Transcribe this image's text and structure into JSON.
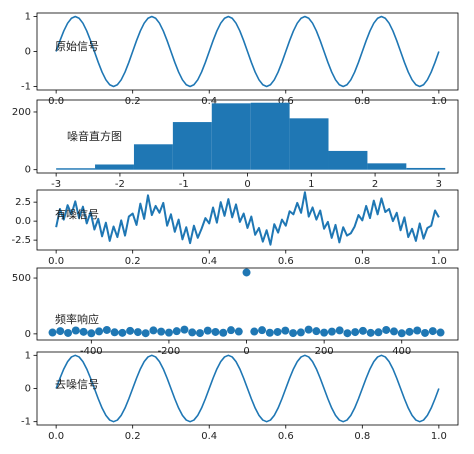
{
  "chart_data": [
    {
      "type": "line",
      "label": "原始信号",
      "color": "#1f77b4",
      "x": [
        0,
        0.01,
        0.02,
        0.03,
        0.04,
        0.05,
        0.06,
        0.07,
        0.08,
        0.09,
        0.1,
        0.11,
        0.12,
        0.13,
        0.14,
        0.15,
        0.16,
        0.17,
        0.18,
        0.19,
        0.2,
        0.21,
        0.22,
        0.23,
        0.24,
        0.25,
        0.26,
        0.27,
        0.28,
        0.29,
        0.3,
        0.31,
        0.32,
        0.33,
        0.34,
        0.35,
        0.36,
        0.37,
        0.38,
        0.39,
        0.4,
        0.41,
        0.42,
        0.43,
        0.44,
        0.45,
        0.46,
        0.47,
        0.48,
        0.49,
        0.5,
        0.51,
        0.52,
        0.53,
        0.54,
        0.55,
        0.56,
        0.57,
        0.58,
        0.59,
        0.6,
        0.61,
        0.62,
        0.63,
        0.64,
        0.65,
        0.66,
        0.67,
        0.68,
        0.69,
        0.7,
        0.71,
        0.72,
        0.73,
        0.74,
        0.75,
        0.76,
        0.77,
        0.78,
        0.79,
        0.8,
        0.81,
        0.82,
        0.83,
        0.84,
        0.85,
        0.86,
        0.87,
        0.88,
        0.89,
        0.9,
        0.91,
        0.92,
        0.93,
        0.94,
        0.95,
        0.96,
        0.97,
        0.98,
        0.99,
        1
      ],
      "values": [
        0,
        0.309,
        0.588,
        0.809,
        0.951,
        1,
        0.951,
        0.809,
        0.588,
        0.309,
        0,
        -0.309,
        -0.588,
        -0.809,
        -0.951,
        -1,
        -0.951,
        -0.809,
        -0.588,
        -0.309,
        0,
        0.309,
        0.588,
        0.809,
        0.951,
        1,
        0.951,
        0.809,
        0.588,
        0.309,
        0,
        -0.309,
        -0.588,
        -0.809,
        -0.951,
        -1,
        -0.951,
        -0.809,
        -0.588,
        -0.309,
        0,
        0.309,
        0.588,
        0.809,
        0.951,
        1,
        0.951,
        0.809,
        0.588,
        0.309,
        0,
        -0.309,
        -0.588,
        -0.809,
        -0.951,
        -1,
        -0.951,
        -0.809,
        -0.588,
        -0.309,
        0,
        0.309,
        0.588,
        0.809,
        0.951,
        1,
        0.951,
        0.809,
        0.588,
        0.309,
        0,
        -0.309,
        -0.588,
        -0.809,
        -0.951,
        -1,
        -0.951,
        -0.809,
        -0.588,
        -0.309,
        0,
        0.309,
        0.588,
        0.809,
        0.951,
        1,
        0.951,
        0.809,
        0.588,
        0.309,
        0,
        -0.309,
        -0.588,
        -0.809,
        -0.951,
        -1,
        -0.951,
        -0.809,
        -0.588,
        -0.309,
        0
      ],
      "xlim": [
        -0.05,
        1.05
      ],
      "ylim": [
        -1.1,
        1.1
      ],
      "xticks": [
        {
          "value": 0,
          "label": "0.0"
        },
        0.2,
        0.4,
        0.6,
        0.8,
        {
          "value": 1,
          "label": "1.0"
        }
      ],
      "yticks": [
        -1,
        0,
        1
      ]
    },
    {
      "type": "histogram",
      "label": "噪音直方图",
      "color": "#1f77b4",
      "bins": [
        -3.0,
        -2.39,
        -1.78,
        -1.17,
        -0.56,
        0.05,
        0.66,
        1.27,
        1.88,
        2.49,
        3.1
      ],
      "values": [
        5,
        18,
        88,
        165,
        230,
        232,
        178,
        65,
        22,
        6
      ],
      "xlim": [
        -3.3,
        3.3
      ],
      "ylim": [
        -11.5,
        241.5
      ],
      "xticks": [
        -3,
        -2,
        -1,
        0,
        1,
        2,
        3
      ],
      "yticks": [
        0,
        200
      ]
    },
    {
      "type": "line",
      "label": "有噪信号",
      "color": "#1f77b4",
      "x": [
        0,
        0.01,
        0.02,
        0.03,
        0.04,
        0.05,
        0.06,
        0.07,
        0.08,
        0.09,
        0.1,
        0.11,
        0.12,
        0.13,
        0.14,
        0.15,
        0.16,
        0.17,
        0.18,
        0.19,
        0.2,
        0.21,
        0.22,
        0.23,
        0.24,
        0.25,
        0.26,
        0.27,
        0.28,
        0.29,
        0.3,
        0.31,
        0.32,
        0.33,
        0.34,
        0.35,
        0.36,
        0.37,
        0.38,
        0.39,
        0.4,
        0.41,
        0.42,
        0.43,
        0.44,
        0.45,
        0.46,
        0.47,
        0.48,
        0.49,
        0.5,
        0.51,
        0.52,
        0.53,
        0.54,
        0.55,
        0.56,
        0.57,
        0.58,
        0.59,
        0.6,
        0.61,
        0.62,
        0.63,
        0.64,
        0.65,
        0.66,
        0.67,
        0.68,
        0.69,
        0.7,
        0.71,
        0.72,
        0.73,
        0.74,
        0.75,
        0.76,
        0.77,
        0.78,
        0.79,
        0.8,
        0.81,
        0.82,
        0.83,
        0.84,
        0.85,
        0.86,
        0.87,
        0.88,
        0.89,
        0.9,
        0.91,
        0.92,
        0.93,
        0.94,
        0.95,
        0.96,
        0.97,
        0.98,
        0.99,
        1
      ],
      "values": [
        -0.8,
        1.6,
        0.2,
        2.1,
        0.9,
        2.6,
        0.4,
        1.9,
        -0.3,
        1.2,
        -1.1,
        0.3,
        -2.0,
        -0.2,
        -2.6,
        -0.7,
        -2.1,
        0.1,
        -1.9,
        0.6,
        1.0,
        -0.5,
        2.3,
        0.3,
        3.4,
        0.8,
        2.0,
        1.1,
        2.4,
        -0.6,
        0.9,
        -1.4,
        0.2,
        -2.4,
        -0.8,
        -2.9,
        -0.6,
        -2.2,
        -1.0,
        0.4,
        -0.3,
        1.8,
        -0.2,
        2.5,
        0.7,
        2.9,
        0.5,
        2.2,
        -0.1,
        1.0,
        -0.9,
        0.6,
        -1.8,
        -0.9,
        -2.7,
        -1.2,
        -3.1,
        -0.4,
        -1.5,
        0.2,
        -0.6,
        1.3,
        0.9,
        2.4,
        1.1,
        3.8,
        0.6,
        1.8,
        0.2,
        1.4,
        -1.0,
        -0.1,
        -2.2,
        -0.5,
        -2.8,
        -0.8,
        -1.9,
        -1.6,
        -0.7,
        0.8,
        0.1,
        2.0,
        0.4,
        2.7,
        0.9,
        3.0,
        1.2,
        1.6,
        0.0,
        1.1,
        -1.2,
        0.5,
        -2.1,
        -1.0,
        -2.6,
        -0.3,
        -2.3,
        -0.9,
        -0.6,
        1.4,
        0.5
      ],
      "xlim": [
        -0.05,
        1.05
      ],
      "ylim": [
        -3.8,
        4.1
      ],
      "xticks": [
        {
          "value": 0,
          "label": "0.0"
        },
        0.2,
        0.4,
        0.6,
        0.8,
        {
          "value": 1,
          "label": "1.0"
        }
      ],
      "yticks": [
        -2.5,
        {
          "value": 0,
          "label": "0.0"
        },
        2.5
      ]
    },
    {
      "type": "scatter",
      "label": "频率响应",
      "color": "#1f77b4",
      "x": [
        -500,
        -480,
        -460,
        -440,
        -420,
        -400,
        -380,
        -360,
        -340,
        -320,
        -300,
        -280,
        -260,
        -240,
        -220,
        -200,
        -180,
        -160,
        -140,
        -120,
        -100,
        -80,
        -60,
        -40,
        -20,
        0,
        20,
        40,
        60,
        80,
        100,
        120,
        140,
        160,
        180,
        200,
        220,
        240,
        260,
        280,
        300,
        320,
        340,
        360,
        380,
        400,
        420,
        440,
        460,
        480,
        500
      ],
      "values": [
        12,
        25,
        8,
        30,
        18,
        5,
        22,
        35,
        14,
        9,
        27,
        16,
        6,
        31,
        20,
        11,
        24,
        38,
        13,
        7,
        29,
        17,
        10,
        33,
        21,
        550,
        21,
        33,
        10,
        17,
        29,
        7,
        13,
        38,
        24,
        11,
        20,
        31,
        6,
        16,
        27,
        9,
        14,
        35,
        22,
        5,
        18,
        30,
        8,
        25,
        12
      ],
      "xlim": [
        -540,
        545
      ],
      "ylim": [
        -55,
        590
      ],
      "xticks": [
        -400,
        -200,
        0,
        200,
        400
      ],
      "yticks": [
        0,
        500
      ]
    },
    {
      "type": "line",
      "label": "去噪信号",
      "color": "#1f77b4",
      "x": [
        0,
        0.01,
        0.02,
        0.03,
        0.04,
        0.05,
        0.06,
        0.07,
        0.08,
        0.09,
        0.1,
        0.11,
        0.12,
        0.13,
        0.14,
        0.15,
        0.16,
        0.17,
        0.18,
        0.19,
        0.2,
        0.21,
        0.22,
        0.23,
        0.24,
        0.25,
        0.26,
        0.27,
        0.28,
        0.29,
        0.3,
        0.31,
        0.32,
        0.33,
        0.34,
        0.35,
        0.36,
        0.37,
        0.38,
        0.39,
        0.4,
        0.41,
        0.42,
        0.43,
        0.44,
        0.45,
        0.46,
        0.47,
        0.48,
        0.49,
        0.5,
        0.51,
        0.52,
        0.53,
        0.54,
        0.55,
        0.56,
        0.57,
        0.58,
        0.59,
        0.6,
        0.61,
        0.62,
        0.63,
        0.64,
        0.65,
        0.66,
        0.67,
        0.68,
        0.69,
        0.7,
        0.71,
        0.72,
        0.73,
        0.74,
        0.75,
        0.76,
        0.77,
        0.78,
        0.79,
        0.8,
        0.81,
        0.82,
        0.83,
        0.84,
        0.85,
        0.86,
        0.87,
        0.88,
        0.89,
        0.9,
        0.91,
        0.92,
        0.93,
        0.94,
        0.95,
        0.96,
        0.97,
        0.98,
        0.99,
        1
      ],
      "values": [
        0,
        0.309,
        0.588,
        0.809,
        0.951,
        1,
        0.951,
        0.809,
        0.588,
        0.309,
        0,
        -0.309,
        -0.588,
        -0.809,
        -0.951,
        -1,
        -0.951,
        -0.809,
        -0.588,
        -0.309,
        0,
        0.309,
        0.588,
        0.809,
        0.951,
        1,
        0.951,
        0.809,
        0.588,
        0.309,
        0,
        -0.309,
        -0.588,
        -0.809,
        -0.951,
        -1,
        -0.951,
        -0.809,
        -0.588,
        -0.309,
        0,
        0.309,
        0.588,
        0.809,
        0.951,
        1,
        0.951,
        0.809,
        0.588,
        0.309,
        0,
        -0.309,
        -0.588,
        -0.809,
        -0.951,
        -1,
        -0.951,
        -0.809,
        -0.588,
        -0.309,
        0,
        0.309,
        0.588,
        0.809,
        0.951,
        1,
        0.951,
        0.809,
        0.588,
        0.309,
        0,
        -0.309,
        -0.588,
        -0.809,
        -0.951,
        -1,
        -0.951,
        -0.809,
        -0.588,
        -0.309,
        0,
        0.309,
        0.588,
        0.809,
        0.951,
        1,
        0.951,
        0.809,
        0.588,
        0.309,
        0,
        -0.309,
        -0.588,
        -0.809,
        -0.951,
        -1,
        -0.951,
        -0.809,
        -0.588,
        -0.309,
        0
      ],
      "xlim": [
        -0.05,
        1.05
      ],
      "ylim": [
        -1.1,
        1.1
      ],
      "xticks": [
        {
          "value": 0,
          "label": "0.0"
        },
        0.2,
        0.4,
        0.6,
        0.8,
        {
          "value": 1,
          "label": "1.0"
        }
      ],
      "yticks": [
        -1,
        0,
        1
      ]
    }
  ]
}
